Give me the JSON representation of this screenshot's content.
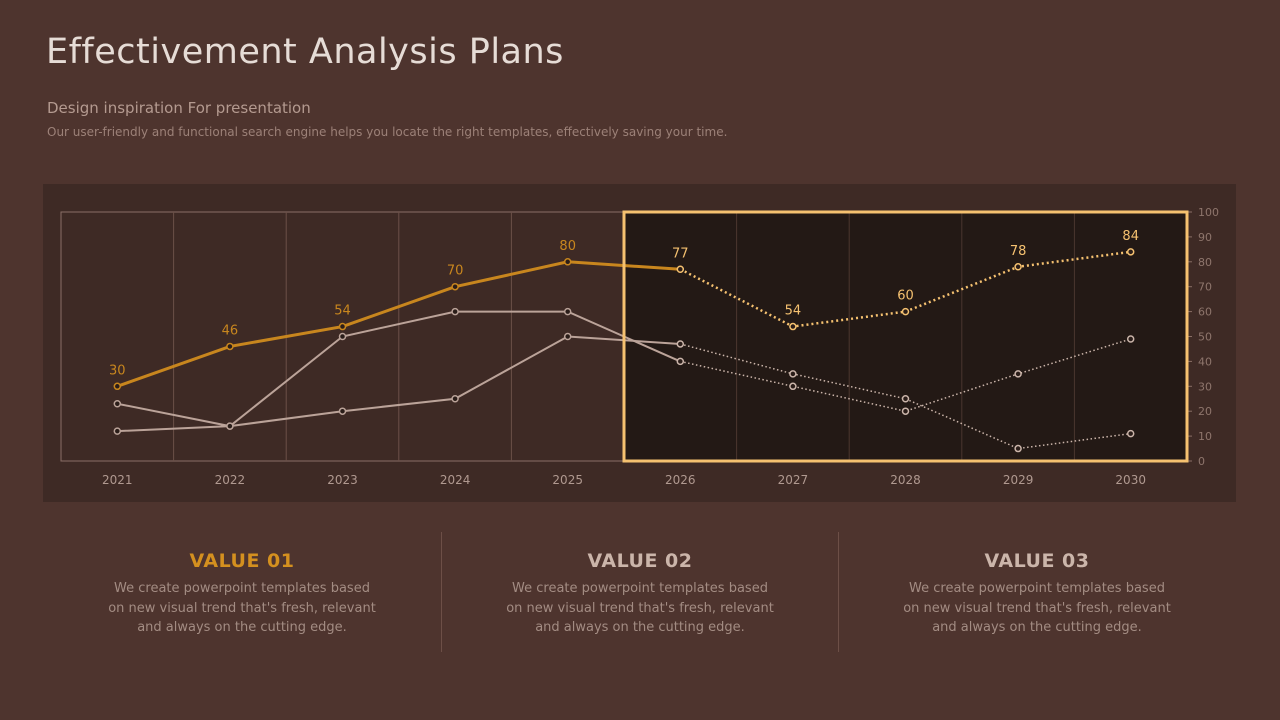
{
  "header": {
    "title": "Effectivement Analysis Plans",
    "subtitle": "Design inspiration For presentation",
    "description": "Our user-friendly and functional search engine helps you locate the right templates, effectively saving your time."
  },
  "chart_data": {
    "type": "line",
    "x": [
      "2021",
      "2022",
      "2023",
      "2024",
      "2025",
      "2026",
      "2027",
      "2028",
      "2029",
      "2030"
    ],
    "ylim": [
      0,
      100
    ],
    "yticks": [
      0,
      10,
      20,
      30,
      40,
      50,
      60,
      70,
      80,
      90,
      100
    ],
    "grid": "vertical",
    "y_axis_position": "right",
    "forecast_from": "2026",
    "series": [
      {
        "values": [
          30,
          46,
          54,
          70,
          80,
          77,
          54,
          60,
          78,
          84
        ],
        "color": "#c8861e",
        "forecast_color": "#f5c170",
        "labels": true
      },
      {
        "values": [
          12,
          14,
          20,
          25,
          50,
          47,
          35,
          25,
          5,
          11
        ],
        "color": "#bba399",
        "forecast_color": "#cbb5aa",
        "labels": false
      },
      {
        "values": [
          23,
          14,
          50,
          60,
          60,
          40,
          30,
          20,
          35,
          49
        ],
        "color": "#bba399",
        "forecast_color": "#cbb5aa",
        "labels": false
      }
    ]
  },
  "values": [
    {
      "title": "VALUE 01",
      "color": "#d4901f",
      "text": "We create powerpoint templates based on new visual trend that's fresh, relevant and always on the cutting edge."
    },
    {
      "title": "VALUE 02",
      "color": "#cbb5aa",
      "text": "We create powerpoint templates based on new visual trend that's fresh, relevant and always on the cutting edge."
    },
    {
      "title": "VALUE 03",
      "color": "#cbb5aa",
      "text": "We create powerpoint templates based on new visual trend that's fresh, relevant and always on the cutting edge."
    }
  ]
}
